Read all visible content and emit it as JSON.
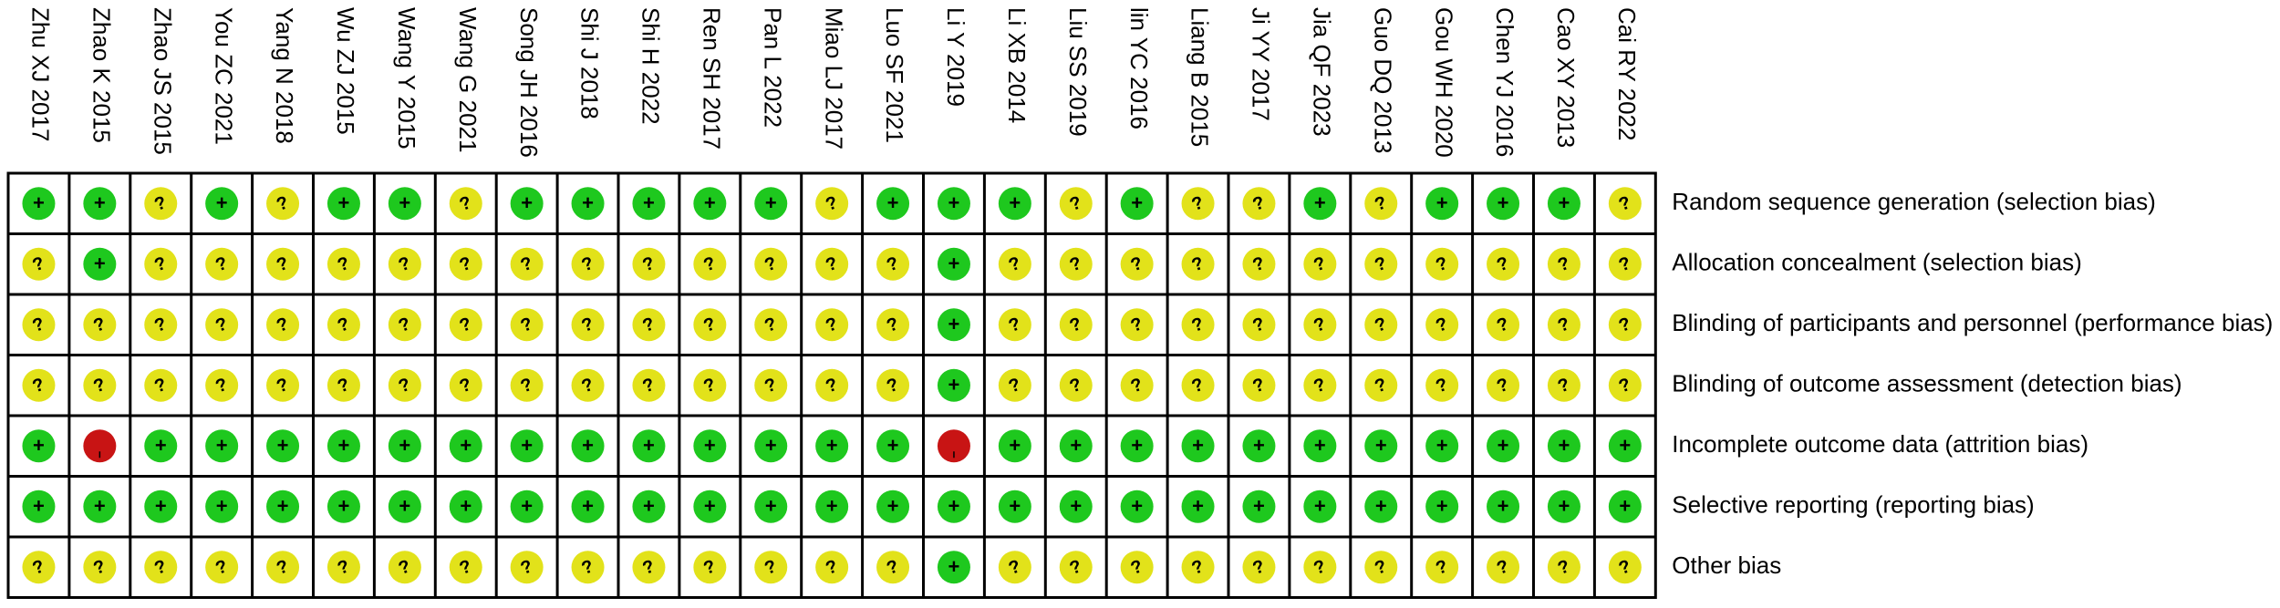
{
  "chart_data": {
    "type": "table",
    "studies": [
      "Zhu XJ 2017",
      "Zhao K 2015",
      "Zhao JS 2015",
      "You ZC 2021",
      "Yang N 2018",
      "Wu ZJ 2015",
      "Wang Y 2015",
      "Wang G 2021",
      "Song JH 2016",
      "Shi J 2018",
      "Shi H 2022",
      "Ren SH 2017",
      "Pan L 2022",
      "Miao LJ 2017",
      "Luo SF 2021",
      "Li Y 2019",
      "Li XB 2014",
      "Liu SS 2019",
      "lin YC 2016",
      "Liang B 2015",
      "Ji YY 2017",
      "Jia QF 2023",
      "Guo DQ 2013",
      "Gou WH 2020",
      "Chen YJ 2016",
      "Cao XY 2013",
      "Cai RY 2022"
    ],
    "domains": [
      "Random sequence generation (selection bias)",
      "Allocation concealment (selection bias)",
      "Blinding of participants and personnel (performance bias)",
      "Blinding of outcome assessment (detection bias)",
      "Incomplete outcome data (attrition bias)",
      "Selective reporting (reporting bias)",
      "Other bias"
    ],
    "ratings": [
      [
        "+",
        "+",
        "?",
        "+",
        "?",
        "+",
        "+",
        "?",
        "+",
        "+",
        "+",
        "+",
        "+",
        "?",
        "+",
        "+",
        "+",
        "?",
        "+",
        "?",
        "?",
        "+",
        "?",
        "+",
        "+",
        "+",
        "?"
      ],
      [
        "?",
        "+",
        "?",
        "?",
        "?",
        "?",
        "?",
        "?",
        "?",
        "?",
        "?",
        "?",
        "?",
        "?",
        "?",
        "+",
        "?",
        "?",
        "?",
        "?",
        "?",
        "?",
        "?",
        "?",
        "?",
        "?",
        "?"
      ],
      [
        "?",
        "?",
        "?",
        "?",
        "?",
        "?",
        "?",
        "?",
        "?",
        "?",
        "?",
        "?",
        "?",
        "?",
        "?",
        "+",
        "?",
        "?",
        "?",
        "?",
        "?",
        "?",
        "?",
        "?",
        "?",
        "?",
        "?"
      ],
      [
        "?",
        "?",
        "?",
        "?",
        "?",
        "?",
        "?",
        "?",
        "?",
        "?",
        "?",
        "?",
        "?",
        "?",
        "?",
        "+",
        "?",
        "?",
        "?",
        "?",
        "?",
        "?",
        "?",
        "?",
        "?",
        "?",
        "?"
      ],
      [
        "+",
        "-",
        "+",
        "+",
        "+",
        "+",
        "+",
        "+",
        "+",
        "+",
        "+",
        "+",
        "+",
        "+",
        "+",
        "-",
        "+",
        "+",
        "+",
        "+",
        "+",
        "+",
        "+",
        "+",
        "+",
        "+",
        "+"
      ],
      [
        "+",
        "+",
        "+",
        "+",
        "+",
        "+",
        "+",
        "+",
        "+",
        "+",
        "+",
        "+",
        "+",
        "+",
        "+",
        "+",
        "+",
        "+",
        "+",
        "+",
        "+",
        "+",
        "+",
        "+",
        "+",
        "+",
        "+"
      ],
      [
        "?",
        "?",
        "?",
        "?",
        "?",
        "?",
        "?",
        "?",
        "?",
        "?",
        "?",
        "?",
        "?",
        "?",
        "?",
        "+",
        "?",
        "?",
        "?",
        "?",
        "?",
        "?",
        "?",
        "?",
        "?",
        "?",
        "?"
      ]
    ],
    "legend": {
      "+": {
        "symbol": "+",
        "color": "#1ec81e"
      },
      "?": {
        "symbol": "?",
        "color": "#e2e21a"
      },
      "-": {
        "symbol": "-",
        "color": "#c81414"
      }
    }
  }
}
